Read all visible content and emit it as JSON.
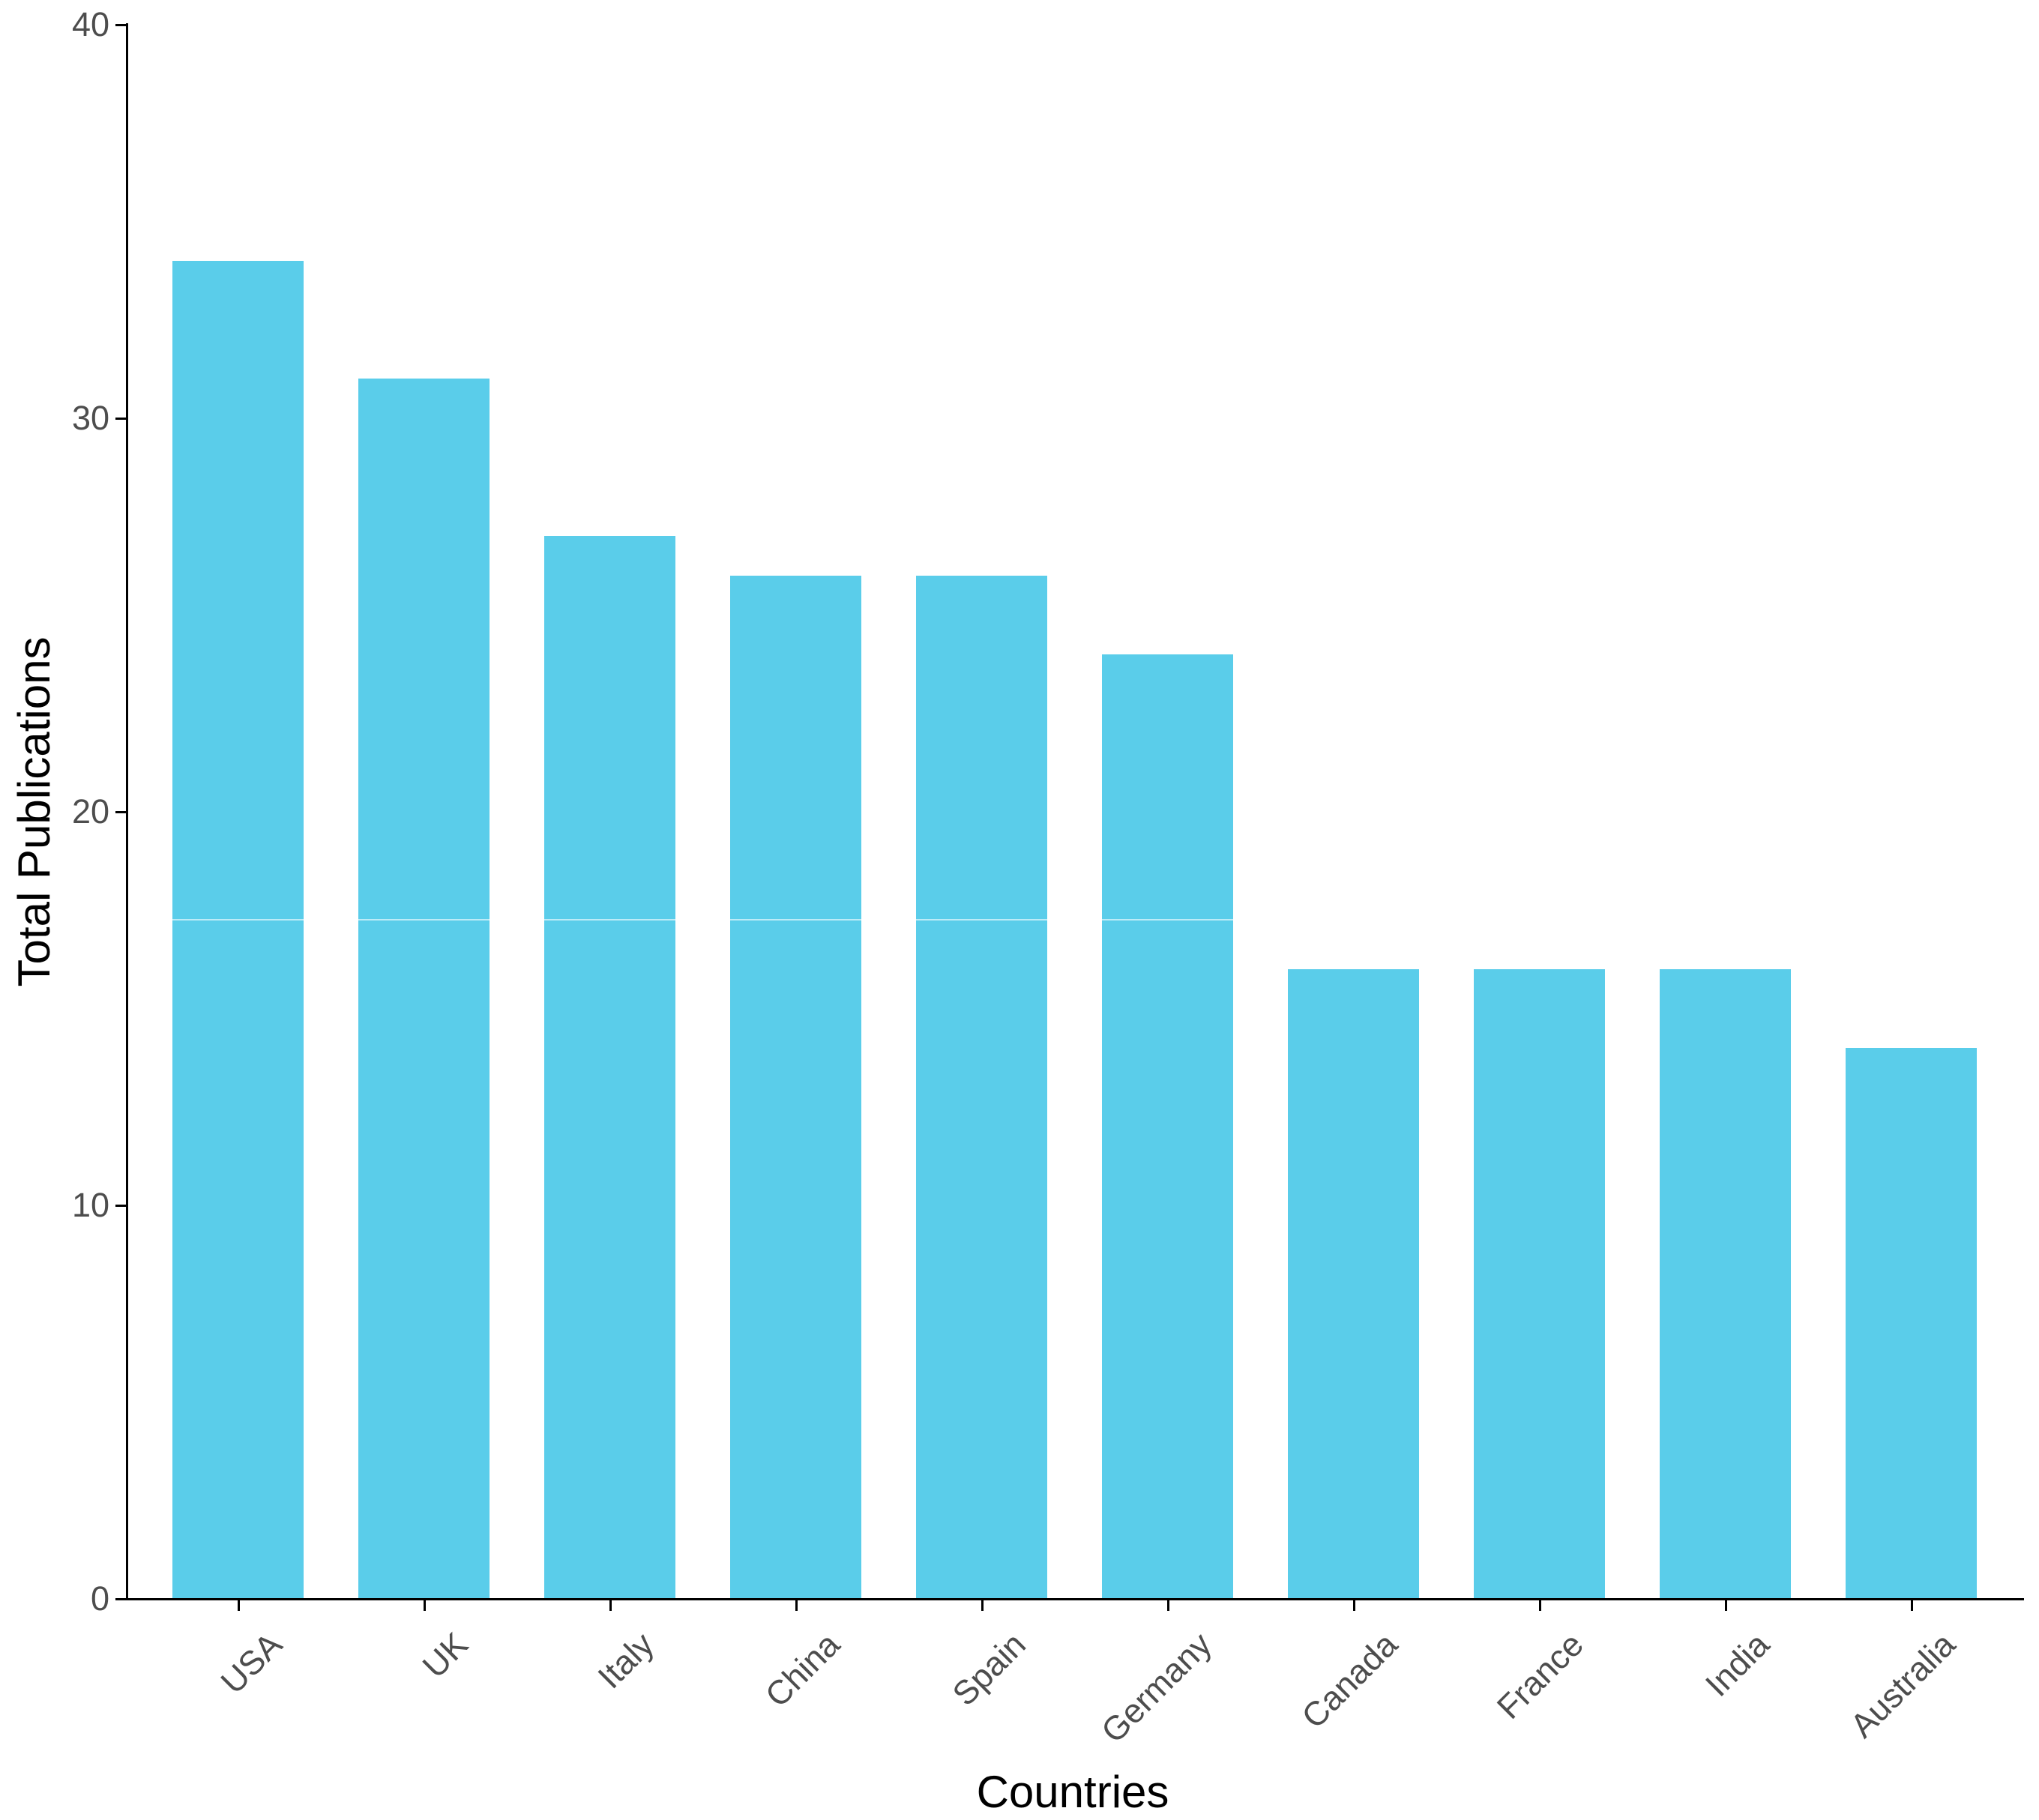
{
  "chart_data": {
    "type": "bar",
    "xlabel": "Countries",
    "ylabel": "Total Publications",
    "categories": [
      "USA",
      "UK",
      "Italy",
      "China",
      "Spain",
      "Germany",
      "Canada",
      "France",
      "India",
      "Australia"
    ],
    "values": [
      34,
      31,
      27,
      26,
      26,
      24,
      16,
      16,
      16,
      14
    ],
    "ylim": [
      0,
      40
    ],
    "y_ticks": [
      0,
      10,
      20,
      30,
      40
    ],
    "grid": "off",
    "legend": "none",
    "x_tick_rotation_deg": 45,
    "bar_color": "#5ACDEA",
    "axis_color": "#000000",
    "tick_label_color": "#4D4D4D",
    "title_color": "#000000",
    "background_color": "#FFFFFF"
  }
}
